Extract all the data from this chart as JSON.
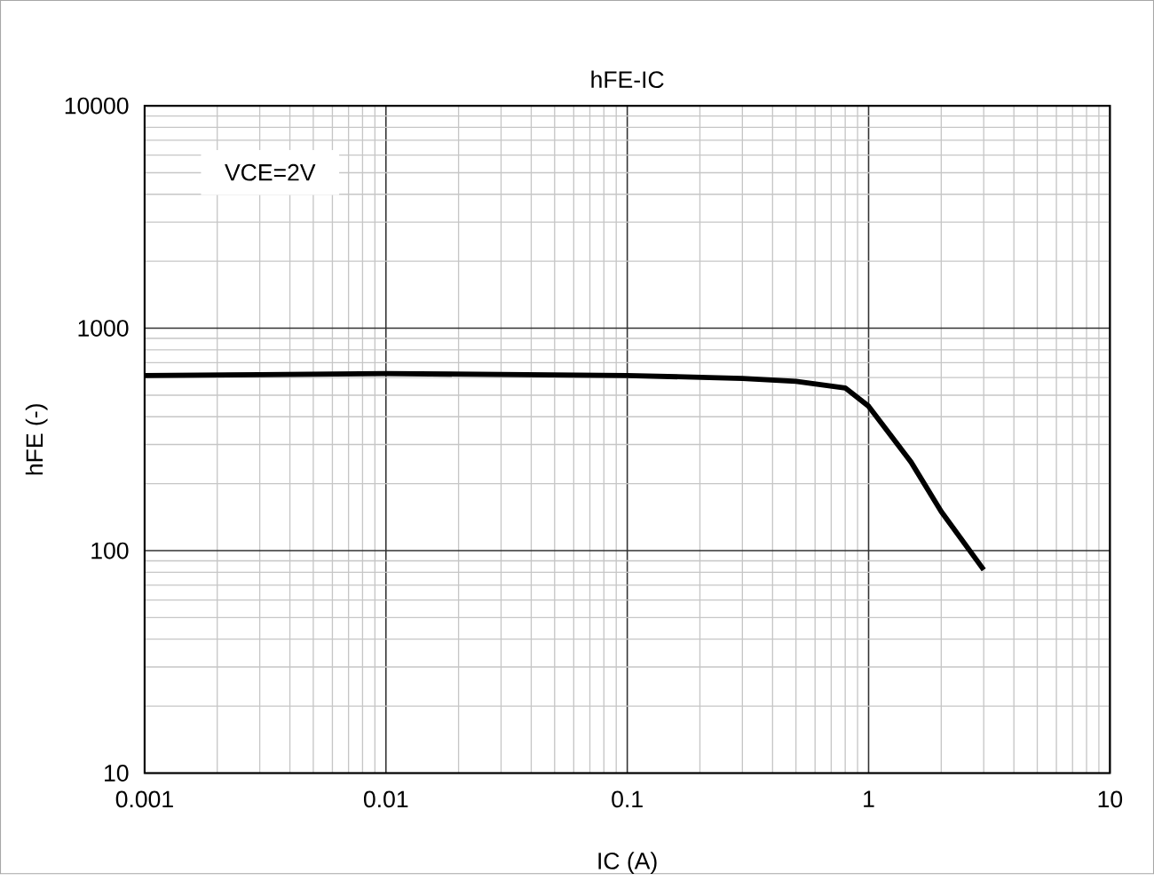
{
  "chart_data": {
    "type": "line",
    "title": "hFE-IC",
    "xlabel": "IC (A)",
    "ylabel": "hFE (-)",
    "log": "xy",
    "grid": true,
    "marker": "none",
    "line_style": "solid",
    "annotations": [
      "VCE=2V"
    ],
    "xlim": [
      0.001,
      10
    ],
    "xticks": [
      0.001,
      0.01,
      0.1,
      1,
      10
    ],
    "ylim": [
      10,
      10000
    ],
    "yticks": [
      10,
      100,
      1000,
      10000
    ],
    "series": [
      {
        "color": "#000000",
        "x": [
          0.001,
          0.003,
          0.01,
          0.03,
          0.1,
          0.3,
          0.5,
          0.8,
          1,
          1.5,
          2,
          3
        ],
        "values": [
          613,
          618,
          625,
          620,
          613,
          595,
          577,
          539,
          446,
          250,
          150,
          82
        ]
      }
    ]
  }
}
